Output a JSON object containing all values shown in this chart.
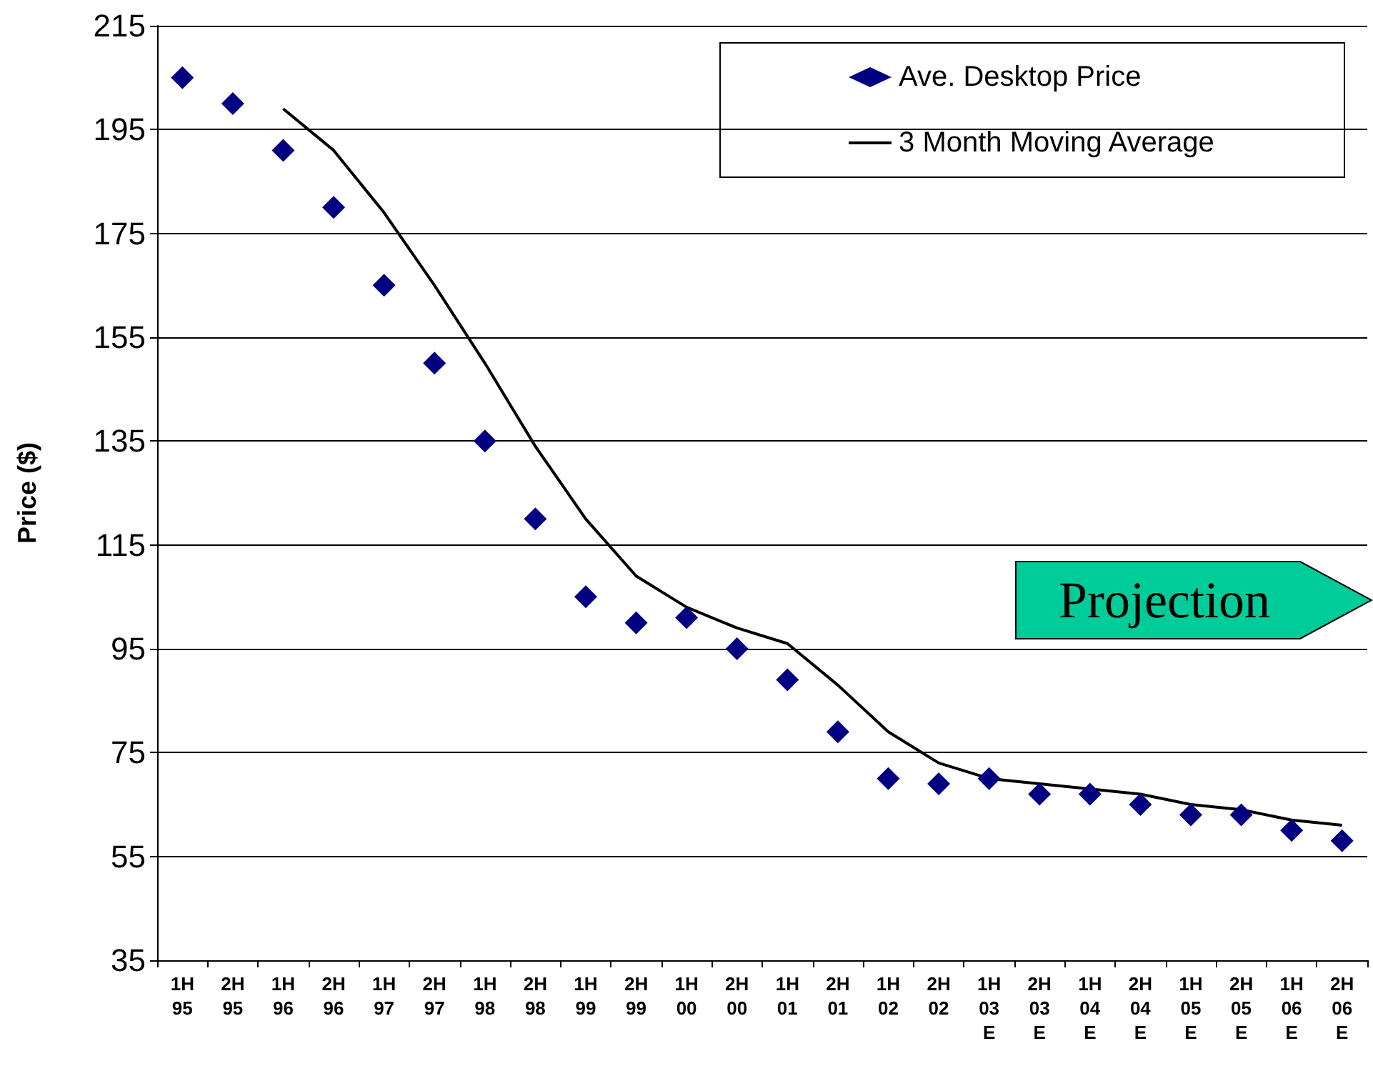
{
  "chart_data": {
    "type": "scatter",
    "ylabel": "Price ($)",
    "categories": [
      "1H\n95",
      "2H\n95",
      "1H\n96",
      "2H\n96",
      "1H\n97",
      "2H\n97",
      "1H\n98",
      "2H\n98",
      "1H\n99",
      "2H\n99",
      "1H\n00",
      "2H\n00",
      "1H\n01",
      "2H\n01",
      "1H\n02",
      "2H\n02",
      "1H\n03\nE",
      "2H\n03\nE",
      "1H\n04\nE",
      "2H\n04\nE",
      "1H\n05\nE",
      "2H\n05\nE",
      "1H\n06\nE",
      "2H\n06\nE"
    ],
    "series": [
      {
        "name": "Ave. Desktop Price",
        "marker": "diamond",
        "color": "#000080",
        "values": [
          205,
          200,
          191,
          180,
          165,
          150,
          135,
          120,
          105,
          100,
          101,
          95,
          89,
          79,
          70,
          69,
          70,
          67,
          67,
          65,
          63,
          63,
          60,
          58
        ]
      },
      {
        "name": "3 Month Moving Average",
        "type": "line",
        "marker": "none",
        "color": "#000000",
        "values": [
          null,
          null,
          199,
          191,
          179,
          165,
          150,
          134,
          120,
          109,
          103,
          99,
          96,
          88,
          79,
          73,
          70,
          69,
          68,
          67,
          65,
          64,
          62,
          61
        ]
      }
    ],
    "ylim": [
      35,
      215
    ],
    "yticks": [
      35,
      55,
      75,
      95,
      115,
      135,
      155,
      175,
      195,
      215
    ],
    "grid": "y",
    "legend": "top right",
    "line_style": "solid",
    "annotations": [
      "Projection"
    ]
  }
}
